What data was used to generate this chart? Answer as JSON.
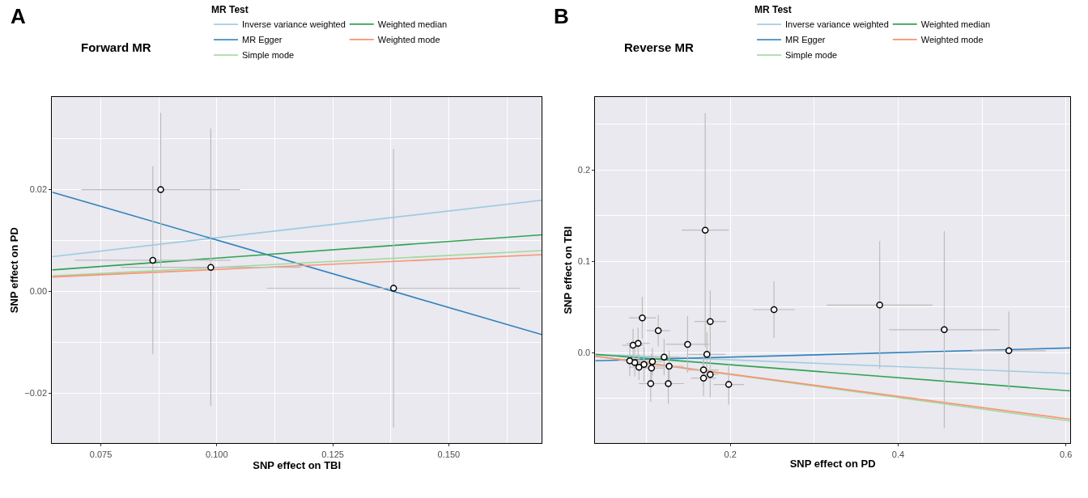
{
  "chart_data": [
    {
      "type": "scatter",
      "title": "Forward MR",
      "annotations": [
        "A"
      ],
      "xlabel": "SNP effect on TBI",
      "ylabel": "SNP effect on PD",
      "legend_title": "MR Test",
      "legend": "top",
      "grid": true,
      "xlim": [
        0.0645,
        0.17
      ],
      "ylim": [
        -0.0299,
        0.0382
      ],
      "xticks": [
        0.075,
        {
          "value": 0.1,
          "label": "0.100"
        },
        0.125,
        {
          "value": 0.15,
          "label": "0.150"
        },
        {
          "value": 0.0875,
          "label": null
        },
        {
          "value": 0.1125,
          "label": null
        },
        {
          "value": 0.1375,
          "label": null
        },
        {
          "value": 0.1625,
          "label": null
        }
      ],
      "yticks": [
        {
          "value": -0.02,
          "label": "−0.02"
        },
        {
          "value": 0,
          "label": "0.00"
        },
        0.02,
        {
          "value": -0.01,
          "label": null
        },
        {
          "value": 0.01,
          "label": null
        },
        {
          "value": 0.03,
          "label": null
        }
      ],
      "series": [
        {
          "marker": "circle",
          "color": "#000000",
          "x": [
            0.0879,
            0.0862,
            0.0987,
            0.1381
          ],
          "values": [
            0.02,
            0.0061,
            0.0047,
            0.0006
          ],
          "errors": [
            0.0151,
            0.0185,
            0.0273,
            0.0274
          ],
          "xerrors": [
            0.0171,
            0.0168,
            0.0194,
            0.0273
          ]
        },
        {
          "type": "line",
          "name": "Inverse variance weighted",
          "color": "#9ecae1",
          "x": [
            0.0645,
            0.17
          ],
          "values": [
            0.0068,
            0.0179
          ]
        },
        {
          "type": "line",
          "name": "MR Egger",
          "color": "#3182bd",
          "x": [
            0.0645,
            0.17
          ],
          "values": [
            0.0195,
            -0.0085
          ]
        },
        {
          "type": "line",
          "name": "Simple mode",
          "color": "#a1d99b",
          "x": [
            0.0645,
            0.17
          ],
          "values": [
            0.003,
            0.008
          ]
        },
        {
          "type": "line",
          "name": "Weighted median",
          "color": "#31a354",
          "x": [
            0.0645,
            0.17
          ],
          "values": [
            0.0042,
            0.0111
          ]
        },
        {
          "type": "line",
          "name": "Weighted mode",
          "color": "#fc9272",
          "x": [
            0.0645,
            0.17
          ],
          "values": [
            0.0028,
            0.0072
          ]
        }
      ]
    },
    {
      "type": "scatter",
      "title": "Reverse MR",
      "annotations": [
        "B"
      ],
      "xlabel": "SNP effect on PD",
      "ylabel": "SNP effect on TBI",
      "legend_title": "MR Test",
      "legend": "top",
      "grid": true,
      "xlim": [
        0.039,
        0.605
      ],
      "ylim": [
        -0.0993,
        0.2797
      ],
      "xticks": [
        0.2,
        0.4,
        0.6,
        {
          "value": 0.1,
          "label": null
        },
        {
          "value": 0.3,
          "label": null
        },
        {
          "value": 0.5,
          "label": null
        }
      ],
      "yticks": [
        {
          "value": 0,
          "label": "0.0"
        },
        0.1,
        0.2,
        {
          "value": -0.05,
          "label": null
        },
        {
          "value": 0.05,
          "label": null
        },
        {
          "value": 0.15,
          "label": null
        },
        {
          "value": 0.25,
          "label": null
        }
      ],
      "series": [
        {
          "marker": "circle",
          "color": "#000000",
          "x": [
            0.17,
            0.252,
            0.378,
            0.455,
            0.532,
            0.176,
            0.095,
            0.114,
            0.084,
            0.09,
            0.149,
            0.172,
            0.121,
            0.08,
            0.086,
            0.097,
            0.107,
            0.091,
            0.106,
            0.127,
            0.168,
            0.176,
            0.168,
            0.105,
            0.126,
            0.198
          ],
          "values": [
            0.134,
            0.047,
            0.052,
            0.025,
            0.002,
            0.034,
            0.038,
            0.024,
            0.008,
            0.01,
            0.009,
            -0.002,
            -0.005,
            -0.009,
            -0.011,
            -0.013,
            -0.01,
            -0.016,
            -0.017,
            -0.015,
            -0.019,
            -0.024,
            -0.028,
            -0.034,
            -0.034,
            -0.035
          ],
          "errors": [
            0.128,
            0.031,
            0.07,
            0.108,
            0.043,
            0.034,
            0.023,
            0.017,
            0.018,
            0.017,
            0.031,
            0.024,
            0.02,
            0.017,
            0.015,
            0.019,
            0.015,
            0.014,
            0.015,
            0.017,
            0.017,
            0.025,
            0.02,
            0.02,
            0.022,
            0.022
          ],
          "xerrors": [
            0.028,
            0.025,
            0.063,
            0.066,
            0.044,
            0.019,
            0.016,
            0.014,
            0.013,
            0.014,
            0.026,
            0.022,
            0.018,
            0.008,
            0.01,
            0.012,
            0.012,
            0.012,
            0.014,
            0.017,
            0.018,
            0.01,
            0.015,
            0.014,
            0.019,
            0.018
          ]
        },
        {
          "type": "line",
          "name": "Inverse variance weighted",
          "color": "#9ecae1",
          "x": [
            0.039,
            0.605
          ],
          "values": [
            -0.002,
            -0.023
          ]
        },
        {
          "type": "line",
          "name": "MR Egger",
          "color": "#3182bd",
          "x": [
            0.039,
            0.605
          ],
          "values": [
            -0.009,
            0.005
          ]
        },
        {
          "type": "line",
          "name": "Simple mode",
          "color": "#a1d99b",
          "x": [
            0.039,
            0.605
          ],
          "values": [
            -0.004,
            -0.075
          ]
        },
        {
          "type": "line",
          "name": "Weighted median",
          "color": "#31a354",
          "x": [
            0.039,
            0.605
          ],
          "values": [
            -0.002,
            -0.042
          ]
        },
        {
          "type": "line",
          "name": "Weighted mode",
          "color": "#fc9272",
          "x": [
            0.039,
            0.605
          ],
          "values": [
            -0.004,
            -0.073
          ]
        }
      ]
    }
  ]
}
